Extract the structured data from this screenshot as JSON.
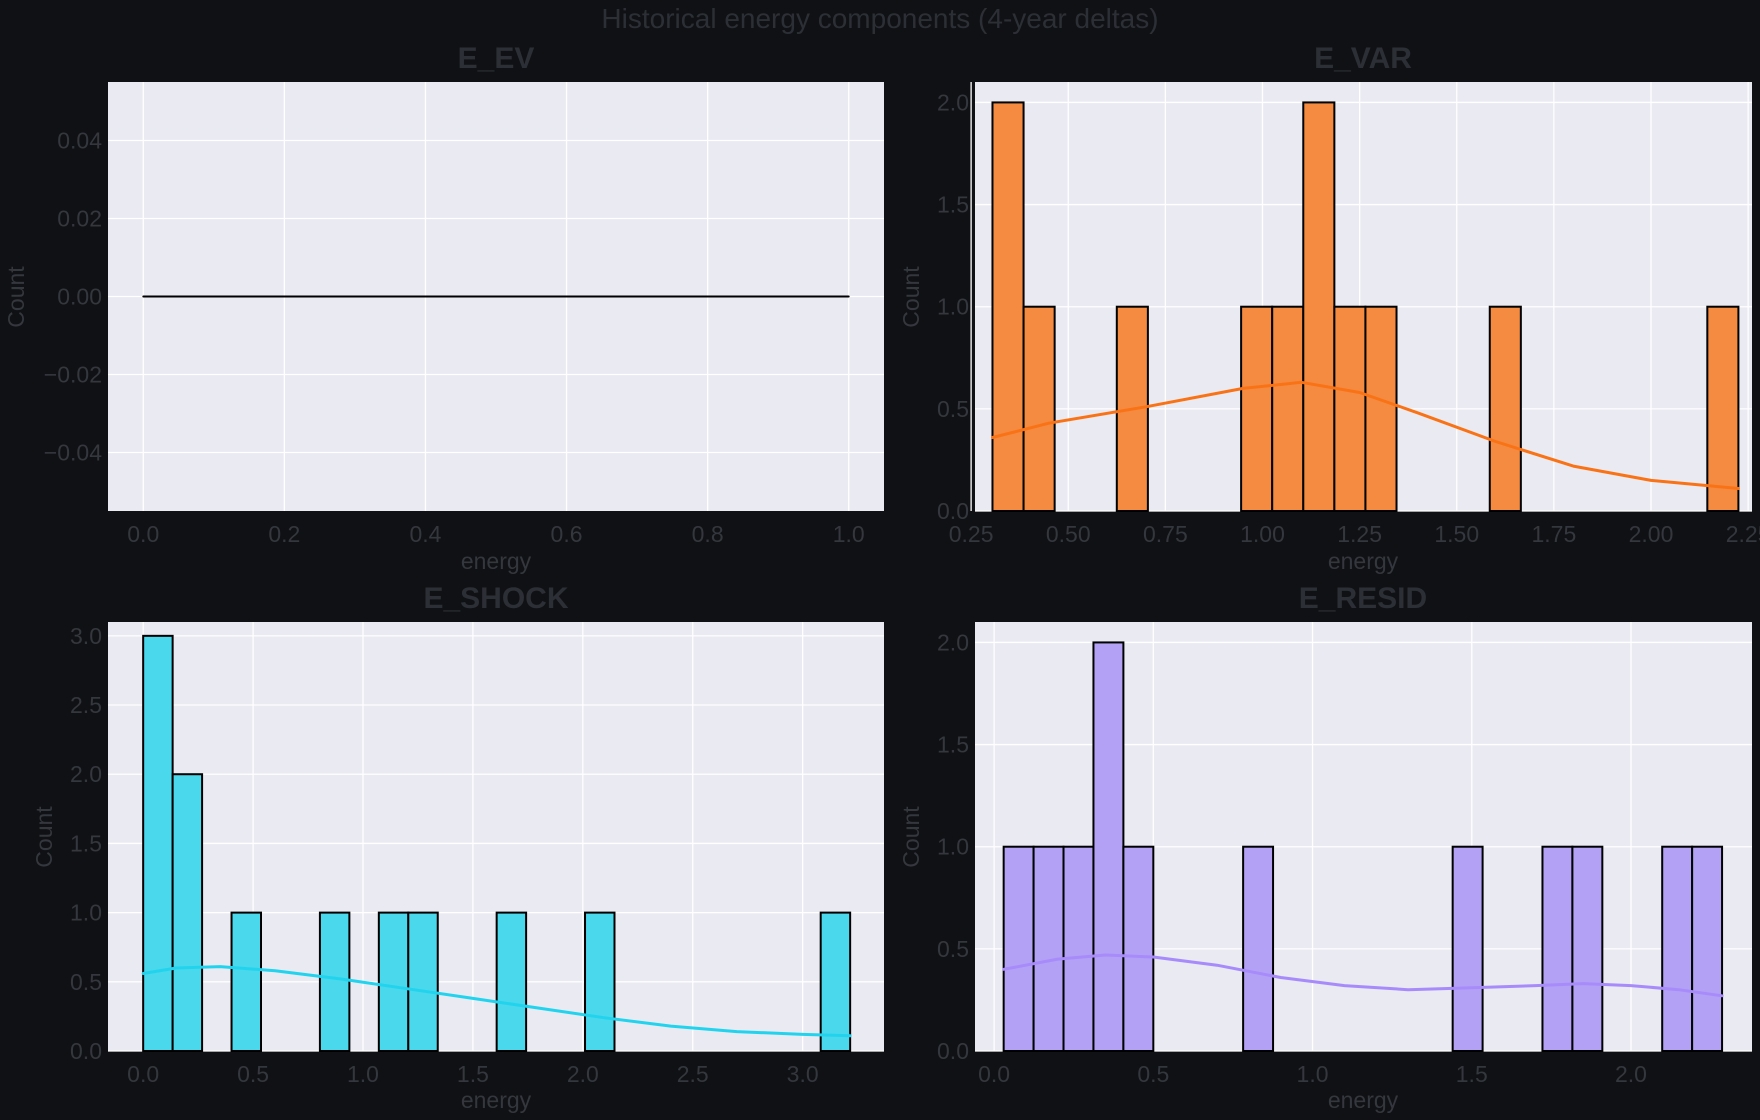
{
  "figure": {
    "title": "Historical energy components (4-year deltas)",
    "background": "#101114",
    "panel_background": "#eaeaf2"
  },
  "chart_data": [
    {
      "type": "line",
      "title": "E_EV",
      "xlabel": "energy",
      "ylabel": "Count",
      "xlim": [
        -0.05,
        1.05
      ],
      "ylim": [
        -0.055,
        0.055
      ],
      "xticks": [
        0.0,
        0.2,
        0.4,
        0.6,
        0.8,
        1.0
      ],
      "xtick_labels": [
        "0.0",
        "0.2",
        "0.4",
        "0.6",
        "0.8",
        "1.0"
      ],
      "yticks": [
        -0.04,
        -0.02,
        0.0,
        0.02,
        0.04
      ],
      "ytick_labels": [
        "−0.04",
        "−0.02",
        "0.00",
        "0.02",
        "0.04"
      ],
      "grid": true,
      "color": "#000000",
      "bars": [],
      "kde": [
        [
          0.0,
          0.0
        ],
        [
          1.0,
          0.0
        ]
      ]
    },
    {
      "type": "bar",
      "title": "E_VAR",
      "xlabel": "energy",
      "ylabel": "Count",
      "xlim": [
        0.26,
        2.26
      ],
      "ylim": [
        0,
        2.1
      ],
      "xticks": [
        0.25,
        0.5,
        0.75,
        1.0,
        1.25,
        1.5,
        1.75,
        2.0,
        2.25
      ],
      "xtick_labels": [
        "0.25",
        "0.50",
        "0.75",
        "1.00",
        "1.25",
        "1.50",
        "1.75",
        "2.00",
        "2.25"
      ],
      "yticks": [
        0,
        0.5,
        1.0,
        1.5,
        2.0
      ],
      "ytick_labels": [
        "0.0",
        "0.5",
        "1.0",
        "1.5",
        "2.0"
      ],
      "grid": true,
      "color": "#f48b41",
      "line_color": "#f97316",
      "bars": [
        {
          "x0": 0.305,
          "x1": 0.385,
          "count": 2
        },
        {
          "x0": 0.385,
          "x1": 0.465,
          "count": 1
        },
        {
          "x0": 0.625,
          "x1": 0.705,
          "count": 1
        },
        {
          "x0": 0.945,
          "x1": 1.025,
          "count": 1
        },
        {
          "x0": 1.025,
          "x1": 1.105,
          "count": 1
        },
        {
          "x0": 1.105,
          "x1": 1.185,
          "count": 2
        },
        {
          "x0": 1.185,
          "x1": 1.265,
          "count": 1
        },
        {
          "x0": 1.265,
          "x1": 1.345,
          "count": 1
        },
        {
          "x0": 1.585,
          "x1": 1.665,
          "count": 1
        },
        {
          "x0": 2.145,
          "x1": 2.225,
          "count": 1
        }
      ],
      "kde": [
        [
          0.305,
          0.36
        ],
        [
          0.45,
          0.43
        ],
        [
          0.7,
          0.51
        ],
        [
          0.95,
          0.6
        ],
        [
          1.1,
          0.63
        ],
        [
          1.25,
          0.58
        ],
        [
          1.4,
          0.48
        ],
        [
          1.6,
          0.34
        ],
        [
          1.8,
          0.22
        ],
        [
          2.0,
          0.15
        ],
        [
          2.225,
          0.11
        ]
      ]
    },
    {
      "type": "bar",
      "title": "E_SHOCK",
      "xlabel": "energy",
      "ylabel": "Count",
      "xlim": [
        -0.16,
        3.37
      ],
      "ylim": [
        0,
        3.1
      ],
      "xticks": [
        0.0,
        0.5,
        1.0,
        1.5,
        2.0,
        2.5,
        3.0
      ],
      "xtick_labels": [
        "0.0",
        "0.5",
        "1.0",
        "1.5",
        "2.0",
        "2.5",
        "3.0"
      ],
      "yticks": [
        0,
        0.5,
        1.0,
        1.5,
        2.0,
        2.5,
        3.0
      ],
      "ytick_labels": [
        "0.0",
        "0.5",
        "1.0",
        "1.5",
        "2.0",
        "2.5",
        "3.0"
      ],
      "grid": true,
      "color": "#4ad8ec",
      "line_color": "#22d3ee",
      "bars": [
        {
          "x0": 0.0,
          "x1": 0.134,
          "count": 3
        },
        {
          "x0": 0.134,
          "x1": 0.268,
          "count": 2
        },
        {
          "x0": 0.402,
          "x1": 0.536,
          "count": 1
        },
        {
          "x0": 0.804,
          "x1": 0.938,
          "count": 1
        },
        {
          "x0": 1.072,
          "x1": 1.206,
          "count": 1
        },
        {
          "x0": 1.206,
          "x1": 1.34,
          "count": 1
        },
        {
          "x0": 1.608,
          "x1": 1.742,
          "count": 1
        },
        {
          "x0": 2.01,
          "x1": 2.144,
          "count": 1
        },
        {
          "x0": 3.082,
          "x1": 3.216,
          "count": 1
        }
      ],
      "kde": [
        [
          0.0,
          0.56
        ],
        [
          0.15,
          0.6
        ],
        [
          0.35,
          0.61
        ],
        [
          0.6,
          0.58
        ],
        [
          0.9,
          0.52
        ],
        [
          1.2,
          0.45
        ],
        [
          1.5,
          0.38
        ],
        [
          1.8,
          0.31
        ],
        [
          2.1,
          0.24
        ],
        [
          2.4,
          0.18
        ],
        [
          2.7,
          0.14
        ],
        [
          3.0,
          0.12
        ],
        [
          3.216,
          0.11
        ]
      ]
    },
    {
      "type": "bar",
      "title": "E_RESID",
      "xlabel": "energy",
      "ylabel": "Count",
      "xlim": [
        -0.06,
        2.38
      ],
      "ylim": [
        0,
        2.1
      ],
      "xticks": [
        0.0,
        0.5,
        1.0,
        1.5,
        2.0
      ],
      "xtick_labels": [
        "0.0",
        "0.5",
        "1.0",
        "1.5",
        "2.0"
      ],
      "yticks": [
        0,
        0.5,
        1.0,
        1.5,
        2.0
      ],
      "ytick_labels": [
        "0.0",
        "0.5",
        "1.0",
        "1.5",
        "2.0"
      ],
      "grid": true,
      "color": "#b3a1f5",
      "line_color": "#a78bfa",
      "bars": [
        {
          "x0": 0.03,
          "x1": 0.124,
          "count": 1
        },
        {
          "x0": 0.124,
          "x1": 0.218,
          "count": 1
        },
        {
          "x0": 0.218,
          "x1": 0.312,
          "count": 1
        },
        {
          "x0": 0.312,
          "x1": 0.406,
          "count": 2
        },
        {
          "x0": 0.406,
          "x1": 0.5,
          "count": 1
        },
        {
          "x0": 0.782,
          "x1": 0.876,
          "count": 1
        },
        {
          "x0": 1.44,
          "x1": 1.534,
          "count": 1
        },
        {
          "x0": 1.722,
          "x1": 1.816,
          "count": 1
        },
        {
          "x0": 1.816,
          "x1": 1.91,
          "count": 1
        },
        {
          "x0": 2.098,
          "x1": 2.192,
          "count": 1
        },
        {
          "x0": 2.192,
          "x1": 2.286,
          "count": 1
        }
      ],
      "kde": [
        [
          0.03,
          0.4
        ],
        [
          0.2,
          0.45
        ],
        [
          0.35,
          0.47
        ],
        [
          0.5,
          0.46
        ],
        [
          0.7,
          0.42
        ],
        [
          0.9,
          0.36
        ],
        [
          1.1,
          0.32
        ],
        [
          1.3,
          0.3
        ],
        [
          1.5,
          0.31
        ],
        [
          1.7,
          0.32
        ],
        [
          1.85,
          0.33
        ],
        [
          2.0,
          0.32
        ],
        [
          2.15,
          0.3
        ],
        [
          2.286,
          0.27
        ]
      ]
    }
  ]
}
